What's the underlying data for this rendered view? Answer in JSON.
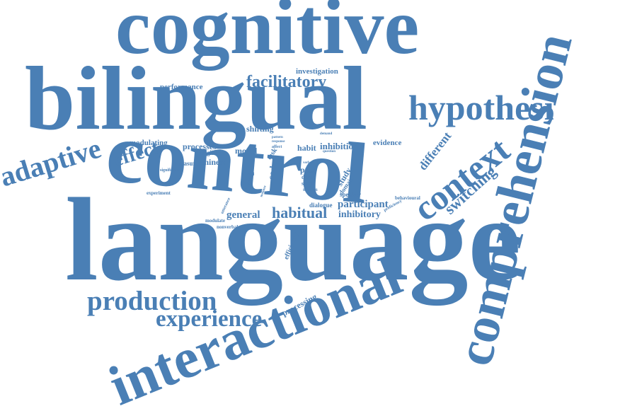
{
  "color": "#4a7fb5",
  "words": {
    "cognitive": "cognitive",
    "bilingual": "bilingual",
    "control": "control",
    "language": "language",
    "comprehension": "comprehension",
    "interactional": "interactional",
    "context": "context",
    "hypothesi": "hypothesi",
    "adaptive": "adaptive",
    "production": "production",
    "experience": "experience",
    "facilitatory": "facilitatory",
    "effect": "effect",
    "switching": "switching",
    "different": "different",
    "habitual": "habitual",
    "general": "general",
    "participant": "participant",
    "inhibitory": "inhibitory",
    "investigation": "investigation",
    "performance": "performance",
    "shifting": "shifting",
    "modulating": "modulating",
    "processes": "processes",
    "model": "model",
    "english": "english",
    "measure": "measure",
    "chinese": "chinese",
    "habit": "habit",
    "inhibition": "inhibition",
    "evidence": "evidence",
    "task": "task",
    "code": "code",
    "proc": "proc",
    "study": "study",
    "domain": "domain",
    "speaker": "speaker",
    "dense": "dense",
    "single": "single",
    "studies": "studies",
    "dialogue": "dialogue",
    "behavioural": "behavioural",
    "proficiency": "proficiency",
    "efficiency": "efficiency",
    "processing": "processing",
    "modulate": "modulate",
    "nonverbal": "nonverbal",
    "significant": "significant",
    "experiment": "experiment",
    "flanker": "flanker",
    "dual": "dual",
    "utterance": "utterance",
    "pattern": "pattern",
    "response": "response",
    "affect": "affect",
    "demand": "demand",
    "question": "question",
    "verbal": "verbal",
    "sense": "sense",
    "monitor": "monitor"
  }
}
